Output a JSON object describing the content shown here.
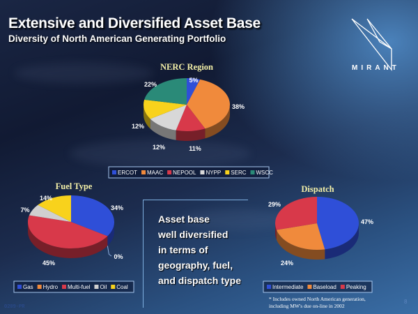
{
  "header": {
    "title": "Extensive and Diversified Asset Base",
    "subtitle": "Diversity of North American Generating Portfolio",
    "logo_text": "MIRANT"
  },
  "message": {
    "lines": [
      "Asset base",
      "well diversified",
      "in terms of",
      "geography, fuel,",
      "and dispatch type"
    ]
  },
  "footnote": {
    "line1": "* Includes owned North American generation,",
    "line2": "including MW's due on-line in 2002"
  },
  "page_number": "8",
  "doc_code": "0209-PR",
  "chart_data": [
    {
      "type": "pie",
      "title": "NERC Region",
      "categories": [
        "ERCOT",
        "MAAC",
        "NEPOOL",
        "NYPP",
        "SERC",
        "WSCC"
      ],
      "values": [
        5,
        38,
        11,
        12,
        12,
        22
      ],
      "labels": [
        "5%",
        "38%",
        "11%",
        "12%",
        "12%",
        "22%"
      ],
      "colors": [
        "#2f4fd8",
        "#f08a3c",
        "#d8394a",
        "#d8d8d8",
        "#f8d21c",
        "#2a8a78"
      ],
      "legend": "bottom"
    },
    {
      "type": "pie",
      "title": "Fuel Type",
      "categories": [
        "Gas",
        "Hydro",
        "Multi-fuel",
        "Oil",
        "Coal"
      ],
      "values": [
        34,
        0,
        45,
        7,
        14
      ],
      "labels": [
        "34%",
        "0%",
        "45%",
        "7%",
        "14%"
      ],
      "colors": [
        "#2f4fd8",
        "#f08a3c",
        "#d8394a",
        "#d0d0d0",
        "#f8d21c"
      ],
      "legend": "bottom"
    },
    {
      "type": "pie",
      "title": "Dispatch",
      "categories": [
        "Intermediate",
        "Baseload",
        "Peaking"
      ],
      "values": [
        47,
        24,
        29
      ],
      "labels": [
        "47%",
        "24%",
        "29%"
      ],
      "colors": [
        "#2f4fd8",
        "#f08a3c",
        "#d8394a"
      ],
      "legend": "bottom"
    }
  ]
}
